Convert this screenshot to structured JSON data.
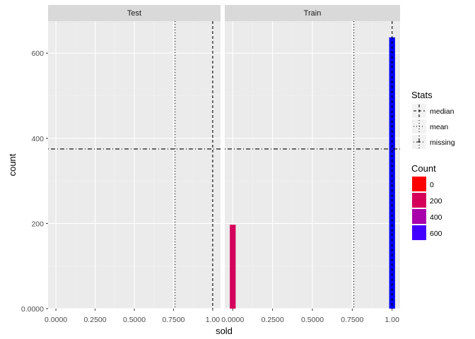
{
  "chart_data": {
    "type": "bar",
    "facet_by": "dataset",
    "xlabel": "sold",
    "ylabel": "count",
    "xlim": [
      -0.05,
      1.05
    ],
    "ylim": [
      0,
      675
    ],
    "x_ticks": [
      {
        "value": 0,
        "label": "0.0000"
      },
      {
        "value": 0.25,
        "label": "0.2500"
      },
      {
        "value": 0.5,
        "label": "0.5000"
      },
      {
        "value": 0.75,
        "label": "0.7500"
      },
      {
        "value": 1,
        "label": "1.00"
      }
    ],
    "y_ticks": [
      {
        "value": 0,
        "label": "0.0000"
      },
      {
        "value": 200,
        "label": "200"
      },
      {
        "value": 400,
        "label": "400"
      },
      {
        "value": 600,
        "label": "600"
      }
    ],
    "panels": [
      {
        "label": "Test",
        "bars": [],
        "median": 1.0,
        "mean": 0.76,
        "missing": 375
      },
      {
        "label": "Train",
        "bars": [
          {
            "x": 0.0,
            "count": 197,
            "color": "#D5005A"
          },
          {
            "x": 1.0,
            "count": 637,
            "color": "#0000FF"
          }
        ],
        "median": 1.0,
        "mean": 0.76,
        "missing": 375
      }
    ],
    "bar_width": 0.0367,
    "legend_stats": {
      "title": "Stats",
      "items": [
        {
          "label": "median",
          "linetype": "dashed"
        },
        {
          "label": "mean",
          "linetype": "dotted"
        },
        {
          "label": "missing",
          "linetype": "dotdash"
        }
      ]
    },
    "legend_count": {
      "title": "Count",
      "items": [
        {
          "label": "0",
          "color": "#FF0000"
        },
        {
          "label": "200",
          "color": "#D5005A"
        },
        {
          "label": "400",
          "color": "#A800AA"
        },
        {
          "label": "600",
          "color": "#4400FF"
        }
      ]
    },
    "colors": {
      "panel_bg": "#EBEBEB",
      "strip_bg": "#D9D9D9",
      "grid_major": "#FFFFFF",
      "grid_minor": "#F2F2F2",
      "tick_text": "#4D4D4D",
      "strip_text": "#1A1A1A",
      "line": "#000000"
    }
  }
}
